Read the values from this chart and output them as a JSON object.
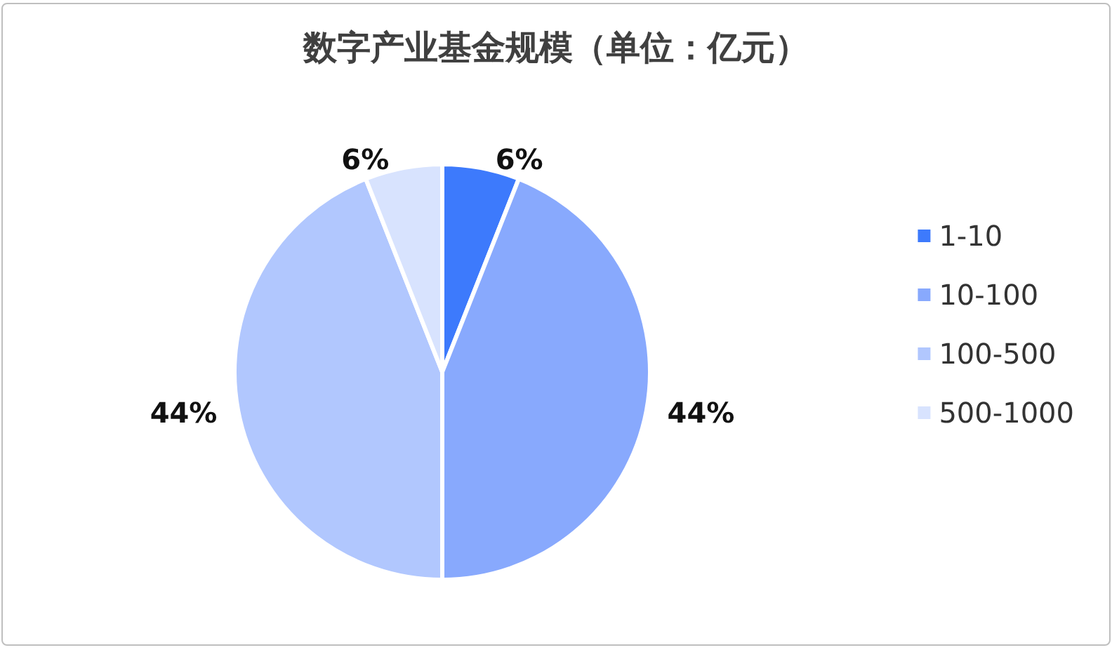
{
  "chart_data": {
    "type": "pie",
    "title": "数字产业基金规模（单位：亿元）",
    "categories": [
      "1-10",
      "10-100",
      "100-500",
      "500-1000"
    ],
    "values": [
      6,
      44,
      44,
      6
    ],
    "colors": [
      "#3d7afc",
      "#88a9fd",
      "#b1c7fe",
      "#d8e3fe"
    ],
    "value_labels": [
      "6%",
      "44%",
      "44%",
      "6%"
    ],
    "legend": "right"
  }
}
